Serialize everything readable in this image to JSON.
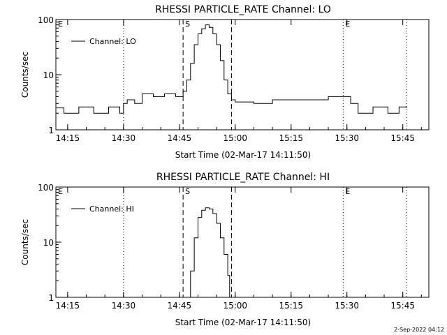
{
  "chart_data": [
    {
      "type": "line",
      "title": "RHESSI PARTICLE_RATE Channel: LO",
      "xlabel": "Start Time (02-Mar-17 14:11:50)",
      "ylabel": "Counts/sec",
      "yscale": "log",
      "ylim": [
        1,
        100
      ],
      "xlim_minutes": [
        "14:11:50",
        "15:52:00"
      ],
      "x_ticks": [
        "14:15",
        "14:30",
        "14:45",
        "15:00",
        "15:15",
        "15:30",
        "15:45"
      ],
      "y_ticks": [
        "1",
        "10",
        "100"
      ],
      "legend": {
        "label": "Channel: LO",
        "position": "top-left"
      },
      "markers": [
        {
          "label": "E",
          "x": "14:11:50",
          "style": "dotted"
        },
        {
          "label": "",
          "x": "14:30",
          "style": "dotted"
        },
        {
          "label": "S",
          "x": "14:46",
          "style": "dashed"
        },
        {
          "label": "",
          "x": "14:59",
          "style": "dashed"
        },
        {
          "label": "E",
          "x": "15:29",
          "style": "dotted"
        },
        {
          "label": "",
          "x": "15:46",
          "style": "dotted"
        }
      ],
      "series": [
        {
          "name": "Channel: LO",
          "points": [
            [
              "14:11:50",
              2.5
            ],
            [
              "14:14",
              2.0
            ],
            [
              "14:18",
              2.6
            ],
            [
              "14:22",
              2.0
            ],
            [
              "14:26",
              2.6
            ],
            [
              "14:29",
              2.0
            ],
            [
              "14:30",
              3.0
            ],
            [
              "14:31",
              3.5
            ],
            [
              "14:33",
              3.0
            ],
            [
              "14:35",
              4.5
            ],
            [
              "14:38",
              4.0
            ],
            [
              "14:41",
              4.5
            ],
            [
              "14:44",
              4.0
            ],
            [
              "14:46",
              5.0
            ],
            [
              "14:47",
              8.0
            ],
            [
              "14:48",
              16
            ],
            [
              "14:49",
              35
            ],
            [
              "14:50",
              55
            ],
            [
              "14:51",
              68
            ],
            [
              "14:52",
              80
            ],
            [
              "14:53",
              72
            ],
            [
              "14:54",
              55
            ],
            [
              "14:55",
              35
            ],
            [
              "14:56",
              18
            ],
            [
              "14:57",
              8.0
            ],
            [
              "14:58",
              4.5
            ],
            [
              "14:59",
              3.5
            ],
            [
              "15:00",
              3.2
            ],
            [
              "15:05",
              3.0
            ],
            [
              "15:10",
              3.5
            ],
            [
              "15:15",
              3.5
            ],
            [
              "15:20",
              3.5
            ],
            [
              "15:25",
              4.0
            ],
            [
              "15:29",
              4.0
            ],
            [
              "15:31",
              3.0
            ],
            [
              "15:33",
              2.0
            ],
            [
              "15:37",
              2.6
            ],
            [
              "15:41",
              2.0
            ],
            [
              "15:44",
              2.6
            ],
            [
              "15:46",
              2.5
            ]
          ]
        }
      ]
    },
    {
      "type": "line",
      "title": "RHESSI PARTICLE_RATE Channel: HI",
      "xlabel": "Start Time (02-Mar-17 14:11:50)",
      "ylabel": "Counts/sec",
      "yscale": "log",
      "ylim": [
        1,
        100
      ],
      "xlim_minutes": [
        "14:11:50",
        "15:52:00"
      ],
      "x_ticks": [
        "14:15",
        "14:30",
        "14:45",
        "15:00",
        "15:15",
        "15:30",
        "15:45"
      ],
      "y_ticks": [
        "1",
        "10",
        "100"
      ],
      "legend": {
        "label": "Channel: HI",
        "position": "top-left"
      },
      "markers": [
        {
          "label": "E",
          "x": "14:11:50",
          "style": "dotted"
        },
        {
          "label": "",
          "x": "14:30",
          "style": "dotted"
        },
        {
          "label": "S",
          "x": "14:46",
          "style": "dashed"
        },
        {
          "label": "",
          "x": "14:59",
          "style": "dashed"
        },
        {
          "label": "E",
          "x": "15:29",
          "style": "dotted"
        },
        {
          "label": "",
          "x": "15:46",
          "style": "dotted"
        }
      ],
      "series": [
        {
          "name": "Channel: HI",
          "points": [
            [
              "14:47",
              1.0
            ],
            [
              "14:48",
              3.0
            ],
            [
              "14:49",
              12
            ],
            [
              "14:50",
              28
            ],
            [
              "14:51",
              38
            ],
            [
              "14:52",
              42
            ],
            [
              "14:53",
              40
            ],
            [
              "14:54",
              33
            ],
            [
              "14:55",
              22
            ],
            [
              "14:56",
              12
            ],
            [
              "14:57",
              6.0
            ],
            [
              "14:58",
              2.5
            ],
            [
              "14:58:30",
              1.0
            ]
          ]
        }
      ]
    }
  ],
  "footer": {
    "timestamp": "2-Sep-2022 04:12"
  }
}
